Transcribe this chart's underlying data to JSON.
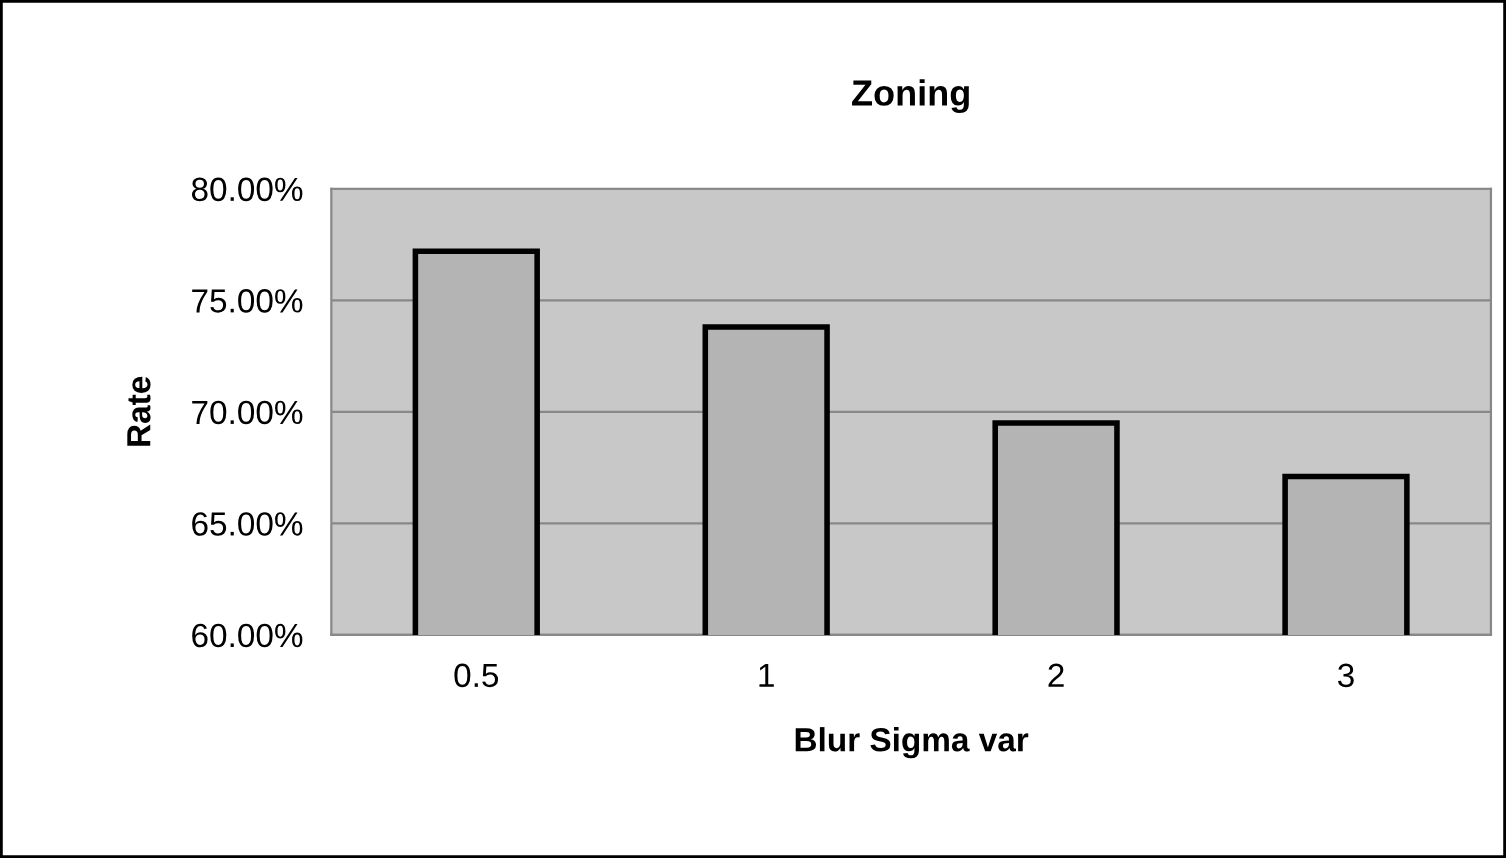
{
  "chart_data": {
    "type": "bar",
    "title": "Zoning",
    "xlabel": "Blur Sigma var",
    "ylabel": "Rate",
    "categories": [
      "0.5",
      "1",
      "2",
      "3"
    ],
    "values": [
      77.2,
      73.8,
      69.5,
      67.1
    ],
    "color": "#b4b4b4",
    "ylim": [
      60,
      80
    ],
    "yticks": [
      {
        "value": 60,
        "label": "60.00%"
      },
      {
        "value": 65,
        "label": "65.00%"
      },
      {
        "value": 70,
        "label": "70.00%"
      },
      {
        "value": 75,
        "label": "75.00%"
      },
      {
        "value": 80,
        "label": "80.00%"
      }
    ],
    "grid": "y",
    "legend": false
  }
}
